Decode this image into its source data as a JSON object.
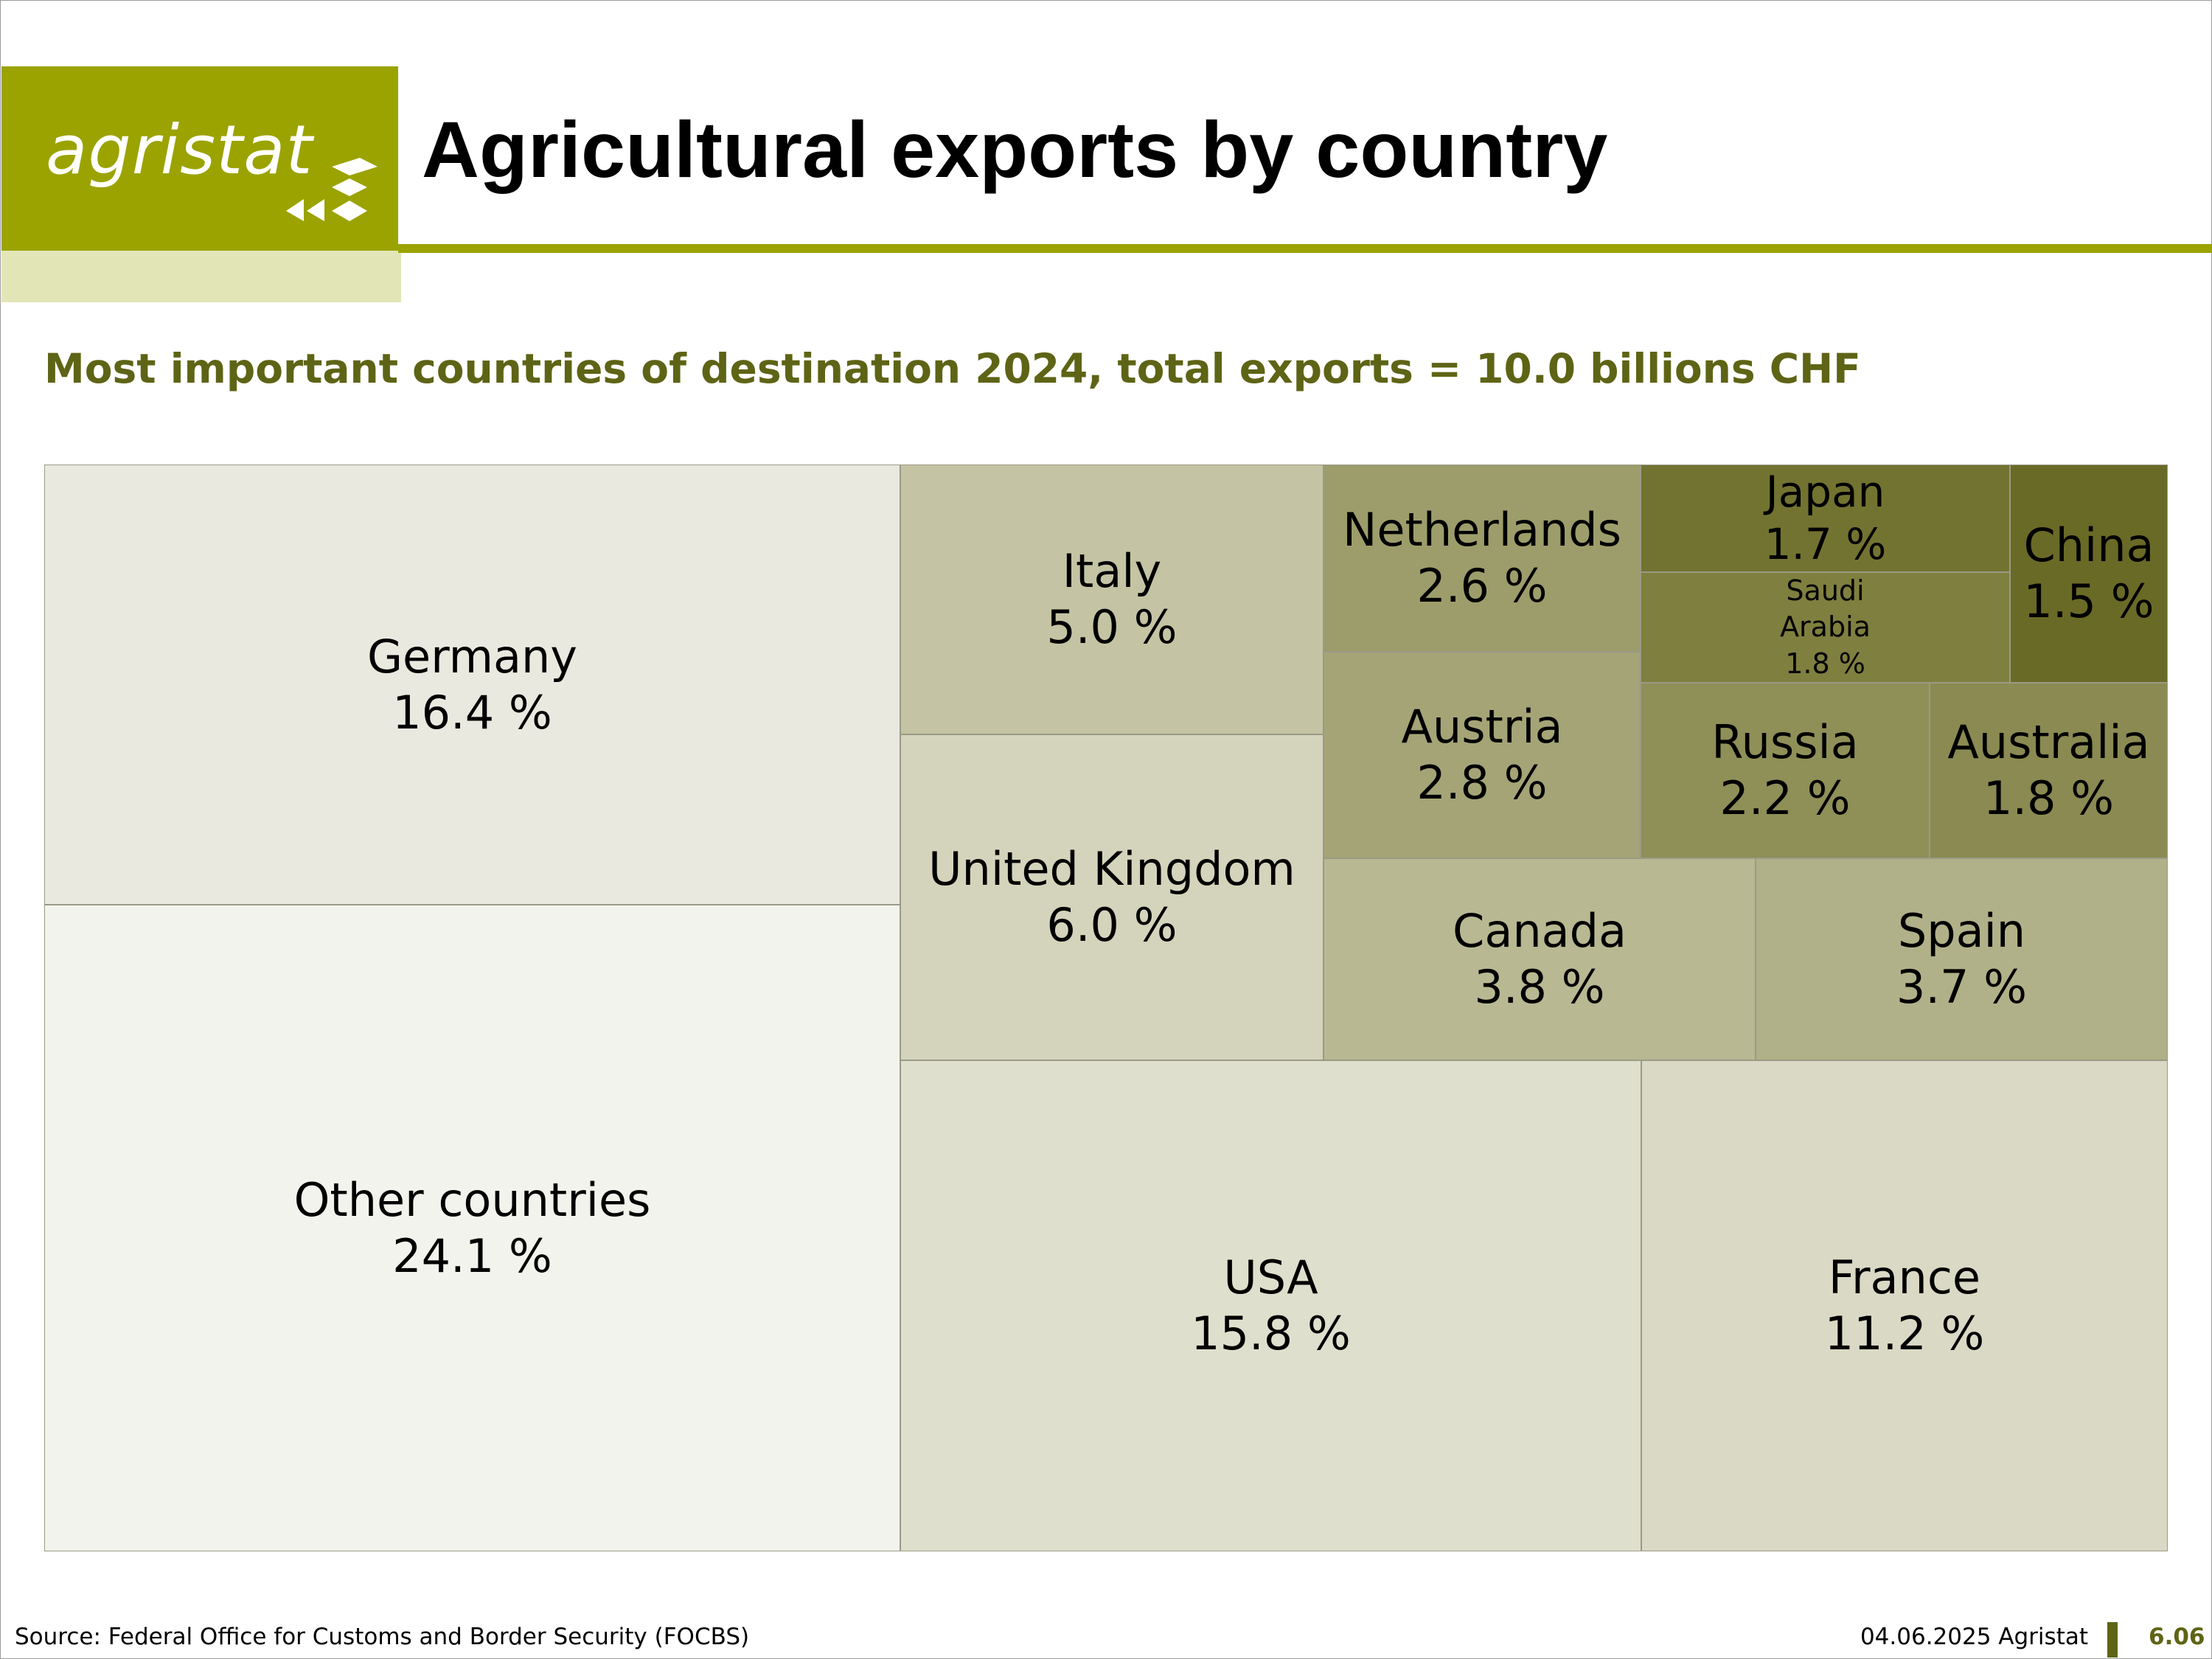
{
  "header": {
    "logo_text": "agristat",
    "title": "Agricultural exports by country"
  },
  "subtitle": "Most important countries of destination 2024, total exports = 10.0 billions CHF",
  "chart_data": {
    "type": "treemap",
    "title": "Agricultural exports by country",
    "subtitle": "Most important countries of destination 2024, total exports = 10.0 billions CHF",
    "unit": "%",
    "items": [
      {
        "label": "Other countries",
        "value": 24.1,
        "value_label": "24.1 %",
        "color": "#f3f3ed"
      },
      {
        "label": "Germany",
        "value": 16.4,
        "value_label": "16.4 %",
        "color": "#e9e9e0"
      },
      {
        "label": "USA",
        "value": 15.8,
        "value_label": "15.8 %",
        "color": "#dfdfcd"
      },
      {
        "label": "France",
        "value": 11.2,
        "value_label": "11.2 %",
        "color": "#d9d9c5"
      },
      {
        "label": "United Kingdom",
        "value": 6.0,
        "value_label": "6.0 %",
        "color": "#d4d4bc"
      },
      {
        "label": "Italy",
        "value": 5.0,
        "value_label": "5.0 %",
        "color": "#c4c4a4"
      },
      {
        "label": "Canada",
        "value": 3.8,
        "value_label": "3.8 %",
        "color": "#b8b892"
      },
      {
        "label": "Spain",
        "value": 3.7,
        "value_label": "3.7 %",
        "color": "#b1b189"
      },
      {
        "label": "Austria",
        "value": 2.8,
        "value_label": "2.8 %",
        "color": "#a4a477"
      },
      {
        "label": "Netherlands",
        "value": 2.6,
        "value_label": "2.6 %",
        "color": "#9d9d6b"
      },
      {
        "label": "Russia",
        "value": 2.2,
        "value_label": "2.2 %",
        "color": "#8f8f58"
      },
      {
        "label": "Australia",
        "value": 1.8,
        "value_label": "1.8 %",
        "color": "#8a8a52"
      },
      {
        "label": "Saudi Arabia",
        "value": 1.8,
        "value_label": "1.8 %",
        "color": "#7f7f3f"
      },
      {
        "label": "Japan",
        "value": 1.7,
        "value_label": "1.7 %",
        "color": "#737331"
      },
      {
        "label": "China",
        "value": 1.5,
        "value_label": "1.5 %",
        "color": "#6a6a27"
      }
    ]
  },
  "footer": {
    "source": "Source: Federal Office for Customs and Border Security (FOCBS)",
    "date": "04.06.2025 Agristat",
    "page": "6.06"
  }
}
